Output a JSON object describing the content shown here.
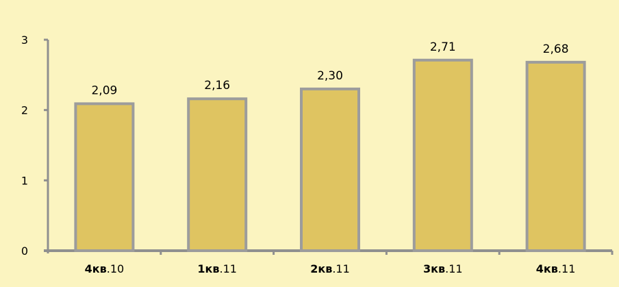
{
  "chart_data": {
    "type": "bar",
    "categories": [
      {
        "bold": "4кв",
        "rest": ".10"
      },
      {
        "bold": "1кв",
        "rest": ".11"
      },
      {
        "bold": "2кв",
        "rest": ".11"
      },
      {
        "bold": "3кв",
        "rest": ".11"
      },
      {
        "bold": "4кв",
        "rest": ".11"
      }
    ],
    "values": [
      2.09,
      2.16,
      2.3,
      2.71,
      2.68
    ],
    "value_labels": [
      "2,09",
      "2,16",
      "2,30",
      "2,71",
      "2,68"
    ],
    "yticks": [
      {
        "value": 0,
        "label": "0"
      },
      {
        "value": 1,
        "label": "1"
      },
      {
        "value": 2,
        "label": "2"
      },
      {
        "value": 3,
        "label": "3"
      }
    ],
    "ylim": [
      0,
      3
    ],
    "grid": false,
    "legend": "none",
    "colors": {
      "background": "#fbf4c0",
      "bar_fill": "#dfc461",
      "bar_stroke": "#9c9c9c",
      "axis": "#8f8f8f"
    }
  }
}
